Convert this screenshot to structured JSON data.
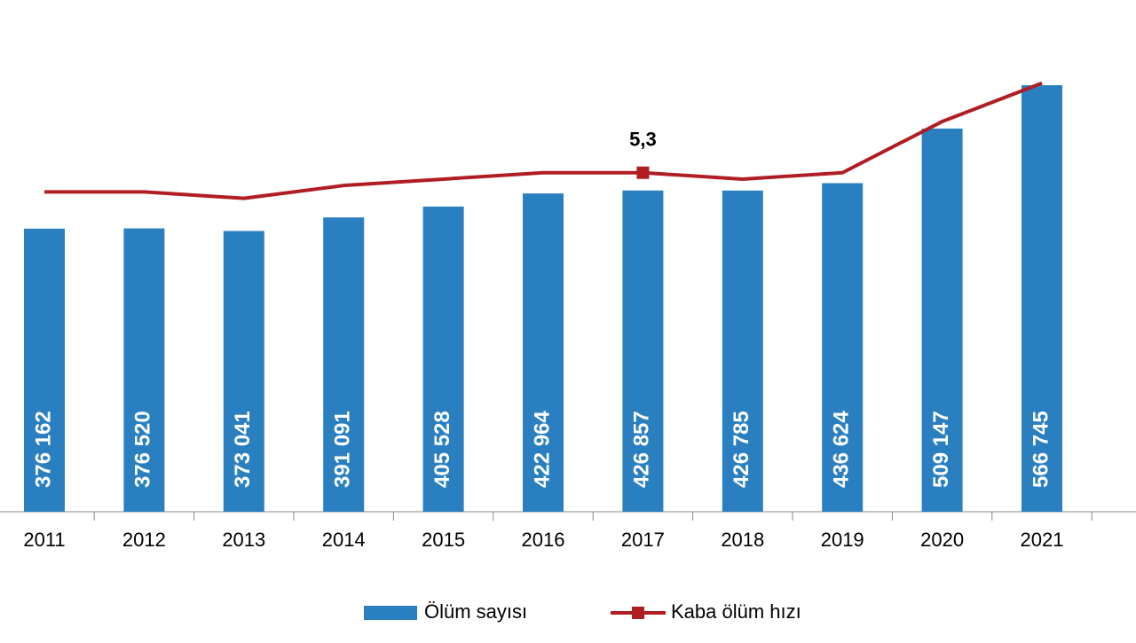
{
  "chart_data": {
    "type": "bar-line",
    "categories": [
      "2011",
      "2012",
      "2013",
      "2014",
      "2015",
      "2016",
      "2017",
      "2018",
      "2019",
      "2020",
      "2021"
    ],
    "series": [
      {
        "name": "Ölüm sayısı",
        "type": "bar",
        "color": "#2a7fc1",
        "values": [
          376162,
          376520,
          373041,
          391091,
          405528,
          422964,
          426857,
          426785,
          436624,
          509147,
          566745
        ],
        "value_labels": [
          "376 162",
          "376 520",
          "373 041",
          "391 091",
          "405 528",
          "422 964",
          "426 857",
          "426 785",
          "436 624",
          "509 147",
          "566 745"
        ]
      },
      {
        "name": "Kaba ölüm hızı",
        "type": "line",
        "axis": "y2",
        "color": "#b01e23",
        "values": [
          5.0,
          5.0,
          4.9,
          5.1,
          5.2,
          5.3,
          5.3,
          5.2,
          5.3,
          6.1,
          6.7
        ],
        "value_labels": [
          null,
          null,
          null,
          null,
          null,
          null,
          "5,3",
          null,
          null,
          null,
          null
        ]
      }
    ],
    "ylim": [
      0,
      680000
    ],
    "y2lim": [
      0,
      8
    ],
    "legend": "bottom"
  }
}
